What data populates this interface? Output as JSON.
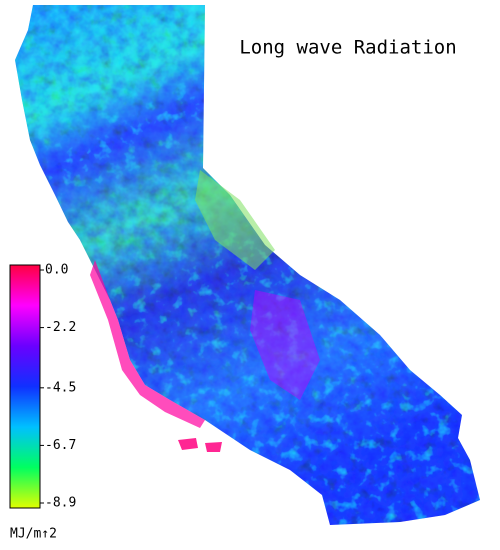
{
  "title": "Long wave Radiation",
  "colorbar": {
    "unit": "MJ/m↑2",
    "lim": [
      -8.9,
      0.0
    ],
    "ticks": [
      {
        "value": 0,
        "label": "0.0"
      },
      -2.2,
      -4.5,
      -6.7,
      -8.9
    ],
    "colors": [
      "#ff0040",
      "#ff00ff",
      "#6a00ff",
      "#1030ff",
      "#00c0ff",
      "#00ff60",
      "#e0ff00"
    ]
  }
}
